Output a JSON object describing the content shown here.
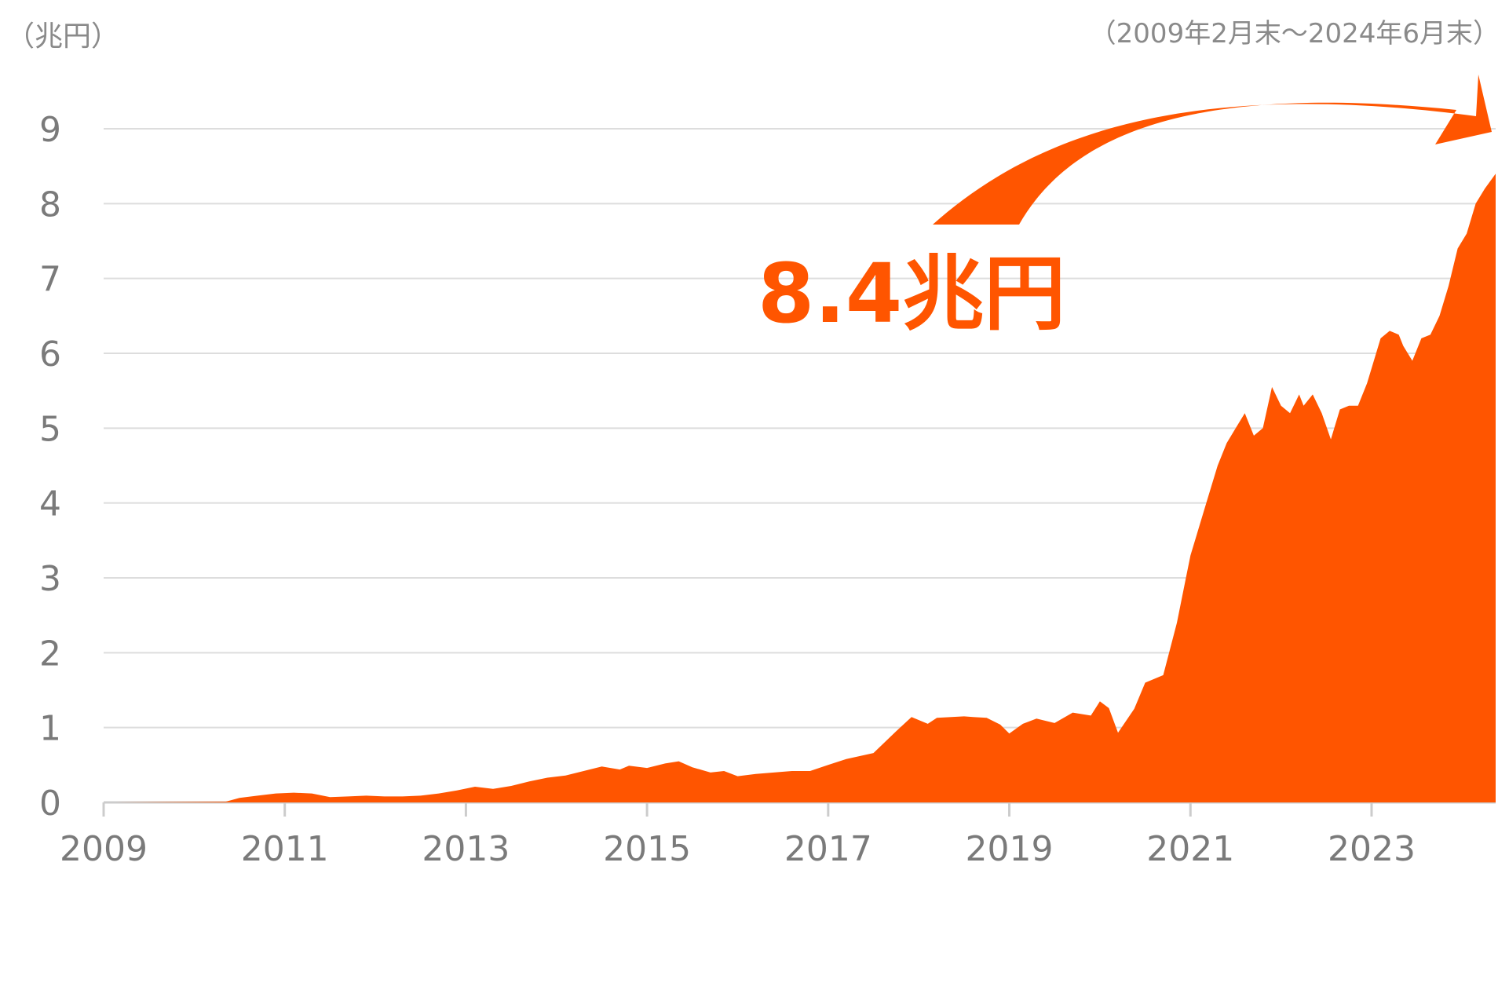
{
  "chart_data": {
    "type": "area",
    "unit_label": "（兆円）",
    "period_label": "（2009年2月末～2024年6月末）",
    "callout_label": "8.4兆円",
    "accent_color": "#FF5500",
    "grid_color": "#DDDDDD",
    "axis_color": "#CCCCCC",
    "tick_color": "#7A7A7A",
    "xlim": [
      2009,
      2024.37
    ],
    "ylim": [
      0,
      9
    ],
    "x_ticks": [
      "2009",
      "2011",
      "2013",
      "2015",
      "2017",
      "2019",
      "2021",
      "2023"
    ],
    "y_ticks": [
      "0",
      "1",
      "2",
      "3",
      "4",
      "5",
      "6",
      "7",
      "8",
      "9"
    ],
    "series": [
      {
        "x": [
          2009.12,
          2010.35,
          2010.5,
          2010.7,
          2010.9,
          2011.1,
          2011.3,
          2011.5,
          2011.7,
          2011.9,
          2012.1,
          2012.3,
          2012.5,
          2012.7,
          2012.9,
          2013.1,
          2013.3,
          2013.5,
          2013.7,
          2013.9,
          2014.1,
          2014.3,
          2014.5,
          2014.7,
          2014.8,
          2015.0,
          2015.2,
          2015.35,
          2015.5,
          2015.7,
          2015.85,
          2016.0,
          2016.2,
          2016.4,
          2016.6,
          2016.8,
          2017.0,
          2017.2,
          2017.5,
          2017.75,
          2017.92,
          2018.1,
          2018.2,
          2018.5,
          2018.6,
          2018.75,
          2018.9,
          2019.0,
          2019.15,
          2019.3,
          2019.5,
          2019.7,
          2019.9,
          2020.0,
          2020.1,
          2020.2,
          2020.38,
          2020.5,
          2020.7,
          2020.85,
          2020.95,
          2021.0,
          2021.1,
          2021.2,
          2021.3,
          2021.4,
          2021.5,
          2021.6,
          2021.7,
          2021.8,
          2021.9,
          2022.0,
          2022.1,
          2022.2,
          2022.25,
          2022.35,
          2022.45,
          2022.55,
          2022.65,
          2022.75,
          2022.85,
          2022.95,
          2023.1,
          2023.2,
          2023.3,
          2023.35,
          2023.45,
          2023.55,
          2023.65,
          2023.75,
          2023.85,
          2023.95,
          2024.05,
          2024.15,
          2024.25,
          2024.37
        ],
        "values": [
          0.0,
          0.01,
          0.06,
          0.09,
          0.12,
          0.13,
          0.12,
          0.07,
          0.08,
          0.09,
          0.08,
          0.08,
          0.09,
          0.12,
          0.16,
          0.21,
          0.18,
          0.22,
          0.28,
          0.33,
          0.36,
          0.42,
          0.48,
          0.44,
          0.49,
          0.46,
          0.52,
          0.55,
          0.47,
          0.4,
          0.42,
          0.35,
          0.38,
          0.4,
          0.42,
          0.42,
          0.5,
          0.58,
          0.66,
          0.95,
          1.14,
          1.05,
          1.13,
          1.15,
          1.14,
          1.13,
          1.04,
          0.92,
          1.05,
          1.12,
          1.06,
          1.2,
          1.16,
          1.35,
          1.26,
          0.93,
          1.25,
          1.6,
          1.7,
          2.4,
          3.0,
          3.3,
          3.7,
          4.1,
          4.5,
          4.8,
          5.0,
          5.2,
          4.9,
          5.0,
          5.55,
          5.3,
          5.2,
          5.45,
          5.3,
          5.45,
          5.2,
          4.85,
          5.25,
          5.3,
          5.3,
          5.6,
          6.2,
          6.3,
          6.25,
          6.1,
          5.9,
          6.2,
          6.25,
          6.5,
          6.9,
          7.4,
          7.6,
          8.0,
          8.2,
          8.4
        ]
      }
    ]
  }
}
